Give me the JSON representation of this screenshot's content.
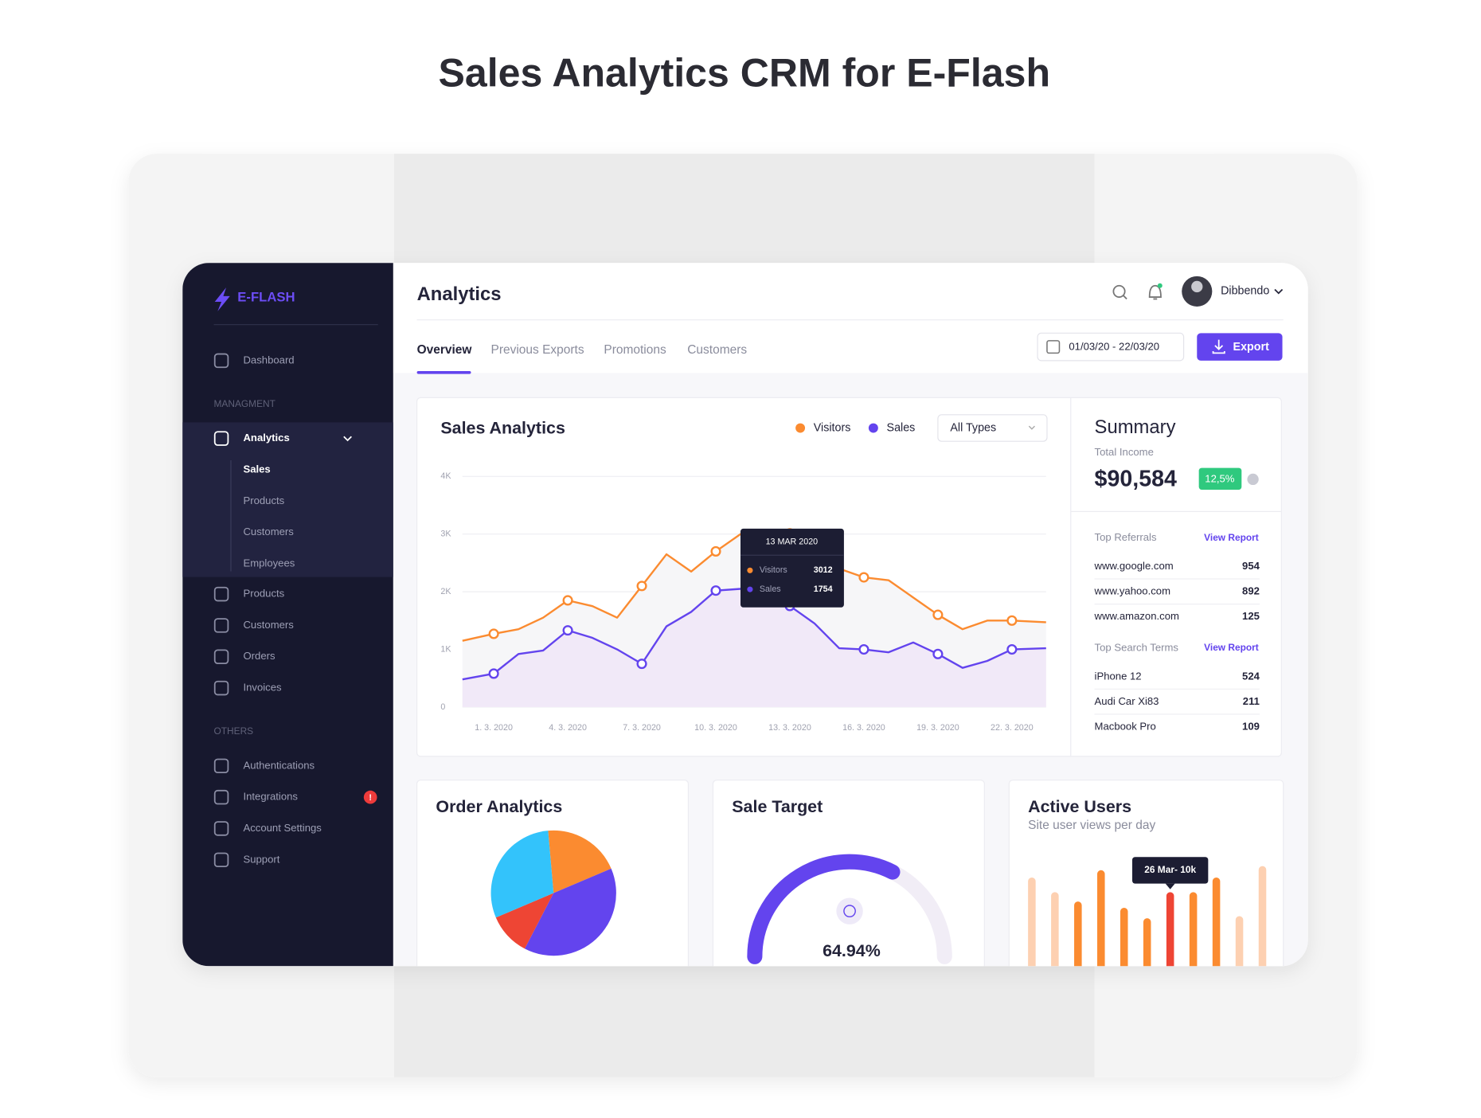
{
  "title": "Sales Analytics CRM for E-Flash",
  "sidebar": {
    "brand": "E-FLASH",
    "dashboard": "Dashboard",
    "sections": [
      {
        "heading": "MANAGMENT",
        "items": [
          {
            "label": "Analytics",
            "children": [
              "Sales",
              "Products",
              "Customers",
              "Employees"
            ]
          },
          {
            "label": "Products"
          },
          {
            "label": "Customers"
          },
          {
            "label": "Orders"
          },
          {
            "label": "Invoices"
          }
        ]
      },
      {
        "heading": "OTHERS",
        "items": [
          {
            "label": "Authentications"
          },
          {
            "label": "Integrations",
            "badge": "!"
          },
          {
            "label": "Account Settings"
          },
          {
            "label": "Support"
          }
        ]
      }
    ]
  },
  "header": {
    "title": "Analytics",
    "user": "Dibbendo",
    "tabs": [
      "Overview",
      "Previous Exports",
      "Promotions",
      "Customers"
    ],
    "date_range": "01/03/20 - 22/03/20",
    "export": "Export"
  },
  "summary": {
    "title": "Summary",
    "total_label": "Total Income",
    "total": "$90,584",
    "change": "12,5%",
    "lists": [
      {
        "heading": "Top Referrals",
        "link": "View Report",
        "rows": [
          [
            "www.google.com",
            "954"
          ],
          [
            "www.yahoo.com",
            "892"
          ],
          [
            "www.amazon.com",
            "125"
          ]
        ]
      },
      {
        "heading": "Top Search Terms",
        "link": "View Report",
        "rows": [
          [
            "iPhone 12",
            "524"
          ],
          [
            "Audi Car Xi83",
            "211"
          ],
          [
            "Macbook Pro",
            "109"
          ]
        ]
      }
    ]
  },
  "chart_data": [
    {
      "type": "line",
      "title": "Sales Analytics",
      "filter": "All Types",
      "categories": [
        null,
        "1. 3. 2020",
        null,
        null,
        "4. 3. 2020",
        null,
        null,
        "7. 3. 2020",
        null,
        null,
        "10. 3. 2020",
        null,
        null,
        "13. 3. 2020",
        null,
        null,
        "16. 3. 2020",
        null,
        null,
        "19. 3. 2020",
        null,
        null,
        "22. 3. 2020",
        null
      ],
      "series": [
        {
          "name": "Visitors",
          "color": "#fb8b30",
          "values": [
            1150,
            1270,
            1350,
            1550,
            1850,
            1750,
            1550,
            2100,
            2650,
            2350,
            2700,
            3000,
            3050,
            3012,
            2800,
            2400,
            2250,
            2200,
            1900,
            1600,
            1350,
            1500,
            1500,
            1470
          ]
        },
        {
          "name": "Sales",
          "color": "#6344ee",
          "values": [
            480,
            580,
            920,
            980,
            1330,
            1200,
            1000,
            750,
            1400,
            1650,
            2020,
            2050,
            2050,
            1754,
            1450,
            1020,
            1000,
            950,
            1120,
            920,
            680,
            800,
            1000,
            1020
          ]
        }
      ],
      "ylim": [
        0,
        4000
      ],
      "yticks": [
        0,
        {
          "value": 1000,
          "label": "1K"
        },
        {
          "value": 2000,
          "label": "2K"
        },
        {
          "value": 3000,
          "label": "3K"
        },
        {
          "value": 4000,
          "label": "4K"
        }
      ],
      "grid": true,
      "tooltip": {
        "title": "13 MAR 2020"
      }
    },
    {
      "type": "pie",
      "title": "Order Analytics",
      "values": [
        20,
        39,
        11,
        30
      ],
      "colors": [
        "#fb8b30",
        "#6344ee",
        "#ee4534",
        "#33c3fb"
      ]
    },
    {
      "type": "gauge",
      "title": "Sale Target",
      "values": [
        64.94
      ],
      "value_labels": [
        "64.94%"
      ],
      "ylim": [
        0,
        100
      ],
      "color": "#6344ee"
    },
    {
      "type": "bar",
      "title": "Active Users",
      "subtitle": "Site user views per day",
      "values": [
        11.4,
        10,
        9.1,
        12.1,
        8.5,
        7.5,
        10,
        10,
        11.4,
        7.7,
        12.5
      ],
      "colors": [
        "#fdd0b1",
        "#fdd0b1",
        "#fb8b30",
        "#fb8b30",
        "#fb8b30",
        "#fb8b30",
        "#ee4534",
        "#fb8b30",
        "#fb8b30",
        "#fdd0b1",
        "#fdd0b1"
      ],
      "annotation": "26 Mar- 10k"
    }
  ]
}
